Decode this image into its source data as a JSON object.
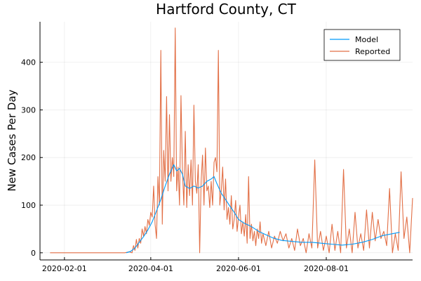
{
  "chart_data": {
    "type": "line",
    "title": "Hartford County, CT",
    "xlabel": "",
    "ylabel": "New Cases Per Day",
    "x_axis": {
      "type": "date",
      "range": [
        "2020-01-15",
        "2020-09-30"
      ],
      "ticks": [
        "2020-02-01",
        "2020-04-01",
        "2020-06-01",
        "2020-08-01"
      ]
    },
    "y_axis": {
      "range": [
        -15,
        485
      ],
      "ticks": [
        0,
        100,
        200,
        300,
        400
      ]
    },
    "grid": true,
    "legend": {
      "position": "top-right",
      "entries": [
        "Model",
        "Reported"
      ]
    },
    "colors": {
      "Model": "#009AFA",
      "Reported": "#E26F46"
    },
    "series": [
      {
        "name": "Model",
        "color": "#009AFA",
        "points": [
          [
            "2020-03-15",
            0
          ],
          [
            "2020-03-18",
            3
          ],
          [
            "2020-03-21",
            10
          ],
          [
            "2020-03-24",
            22
          ],
          [
            "2020-03-27",
            34
          ],
          [
            "2020-03-30",
            48
          ],
          [
            "2020-04-02",
            65
          ],
          [
            "2020-04-05",
            88
          ],
          [
            "2020-04-08",
            112
          ],
          [
            "2020-04-11",
            140
          ],
          [
            "2020-04-14",
            165
          ],
          [
            "2020-04-17",
            185
          ],
          [
            "2020-04-19",
            172
          ],
          [
            "2020-04-21",
            177
          ],
          [
            "2020-04-23",
            165
          ],
          [
            "2020-04-25",
            140
          ],
          [
            "2020-04-28",
            135
          ],
          [
            "2020-05-01",
            140
          ],
          [
            "2020-05-04",
            136
          ],
          [
            "2020-05-07",
            140
          ],
          [
            "2020-05-10",
            150
          ],
          [
            "2020-05-13",
            155
          ],
          [
            "2020-05-15",
            160
          ],
          [
            "2020-05-17",
            145
          ],
          [
            "2020-05-20",
            125
          ],
          [
            "2020-05-23",
            112
          ],
          [
            "2020-05-26",
            98
          ],
          [
            "2020-05-29",
            85
          ],
          [
            "2020-06-01",
            70
          ],
          [
            "2020-06-05",
            62
          ],
          [
            "2020-06-10",
            55
          ],
          [
            "2020-06-15",
            45
          ],
          [
            "2020-06-20",
            38
          ],
          [
            "2020-06-25",
            31
          ],
          [
            "2020-07-01",
            26
          ],
          [
            "2020-07-08",
            24
          ],
          [
            "2020-07-15",
            22
          ],
          [
            "2020-07-22",
            22
          ],
          [
            "2020-07-29",
            20
          ],
          [
            "2020-08-05",
            18
          ],
          [
            "2020-08-12",
            16
          ],
          [
            "2020-08-19",
            18
          ],
          [
            "2020-08-26",
            22
          ],
          [
            "2020-09-02",
            28
          ],
          [
            "2020-09-09",
            36
          ],
          [
            "2020-09-16",
            40
          ],
          [
            "2020-09-21",
            43
          ]
        ]
      },
      {
        "name": "Reported",
        "color": "#E26F46",
        "points": [
          [
            "2020-01-22",
            0
          ],
          [
            "2020-03-10",
            0
          ],
          [
            "2020-03-14",
            0
          ],
          [
            "2020-03-17",
            2
          ],
          [
            "2020-03-19",
            0
          ],
          [
            "2020-03-20",
            15
          ],
          [
            "2020-03-21",
            5
          ],
          [
            "2020-03-22",
            28
          ],
          [
            "2020-03-23",
            10
          ],
          [
            "2020-03-24",
            30
          ],
          [
            "2020-03-25",
            20
          ],
          [
            "2020-03-26",
            50
          ],
          [
            "2020-03-27",
            35
          ],
          [
            "2020-03-28",
            55
          ],
          [
            "2020-03-29",
            40
          ],
          [
            "2020-03-30",
            70
          ],
          [
            "2020-03-31",
            58
          ],
          [
            "2020-04-01",
            85
          ],
          [
            "2020-04-02",
            75
          ],
          [
            "2020-04-03",
            140
          ],
          [
            "2020-04-04",
            60
          ],
          [
            "2020-04-05",
            30
          ],
          [
            "2020-04-06",
            160
          ],
          [
            "2020-04-07",
            100
          ],
          [
            "2020-04-08",
            425
          ],
          [
            "2020-04-09",
            60
          ],
          [
            "2020-04-10",
            215
          ],
          [
            "2020-04-11",
            150
          ],
          [
            "2020-04-12",
            328
          ],
          [
            "2020-04-13",
            130
          ],
          [
            "2020-04-14",
            290
          ],
          [
            "2020-04-15",
            150
          ],
          [
            "2020-04-16",
            200
          ],
          [
            "2020-04-17",
            160
          ],
          [
            "2020-04-18",
            472
          ],
          [
            "2020-04-19",
            130
          ],
          [
            "2020-04-20",
            180
          ],
          [
            "2020-04-21",
            100
          ],
          [
            "2020-04-22",
            330
          ],
          [
            "2020-04-23",
            175
          ],
          [
            "2020-04-24",
            100
          ],
          [
            "2020-04-25",
            255
          ],
          [
            "2020-04-26",
            95
          ],
          [
            "2020-04-27",
            185
          ],
          [
            "2020-04-28",
            120
          ],
          [
            "2020-04-29",
            195
          ],
          [
            "2020-04-30",
            100
          ],
          [
            "2020-05-01",
            310
          ],
          [
            "2020-05-02",
            150
          ],
          [
            "2020-05-03",
            125
          ],
          [
            "2020-05-04",
            185
          ],
          [
            "2020-05-05",
            0
          ],
          [
            "2020-05-06",
            150
          ],
          [
            "2020-05-07",
            205
          ],
          [
            "2020-05-08",
            100
          ],
          [
            "2020-05-09",
            220
          ],
          [
            "2020-05-10",
            130
          ],
          [
            "2020-05-11",
            140
          ],
          [
            "2020-05-12",
            95
          ],
          [
            "2020-05-13",
            150
          ],
          [
            "2020-05-14",
            100
          ],
          [
            "2020-05-15",
            190
          ],
          [
            "2020-05-16",
            200
          ],
          [
            "2020-05-17",
            170
          ],
          [
            "2020-05-18",
            425
          ],
          [
            "2020-05-19",
            100
          ],
          [
            "2020-05-20",
            130
          ],
          [
            "2020-05-21",
            180
          ],
          [
            "2020-05-22",
            90
          ],
          [
            "2020-05-23",
            155
          ],
          [
            "2020-05-24",
            70
          ],
          [
            "2020-05-25",
            95
          ],
          [
            "2020-05-26",
            60
          ],
          [
            "2020-05-27",
            120
          ],
          [
            "2020-05-28",
            50
          ],
          [
            "2020-05-29",
            70
          ],
          [
            "2020-05-30",
            110
          ],
          [
            "2020-05-31",
            45
          ],
          [
            "2020-06-01",
            75
          ],
          [
            "2020-06-02",
            100
          ],
          [
            "2020-06-03",
            40
          ],
          [
            "2020-06-04",
            65
          ],
          [
            "2020-06-05",
            35
          ],
          [
            "2020-06-06",
            80
          ],
          [
            "2020-06-07",
            20
          ],
          [
            "2020-06-08",
            160
          ],
          [
            "2020-06-09",
            30
          ],
          [
            "2020-06-10",
            60
          ],
          [
            "2020-06-11",
            25
          ],
          [
            "2020-06-12",
            45
          ],
          [
            "2020-06-13",
            15
          ],
          [
            "2020-06-14",
            50
          ],
          [
            "2020-06-15",
            30
          ],
          [
            "2020-06-16",
            65
          ],
          [
            "2020-06-17",
            20
          ],
          [
            "2020-06-18",
            40
          ],
          [
            "2020-06-20",
            15
          ],
          [
            "2020-06-22",
            45
          ],
          [
            "2020-06-24",
            10
          ],
          [
            "2020-06-26",
            35
          ],
          [
            "2020-06-28",
            20
          ],
          [
            "2020-06-30",
            45
          ],
          [
            "2020-07-02",
            25
          ],
          [
            "2020-07-04",
            40
          ],
          [
            "2020-07-06",
            10
          ],
          [
            "2020-07-08",
            30
          ],
          [
            "2020-07-10",
            5
          ],
          [
            "2020-07-12",
            50
          ],
          [
            "2020-07-14",
            15
          ],
          [
            "2020-07-16",
            30
          ],
          [
            "2020-07-18",
            0
          ],
          [
            "2020-07-20",
            40
          ],
          [
            "2020-07-22",
            10
          ],
          [
            "2020-07-24",
            195
          ],
          [
            "2020-07-26",
            10
          ],
          [
            "2020-07-28",
            45
          ],
          [
            "2020-07-30",
            5
          ],
          [
            "2020-08-01",
            35
          ],
          [
            "2020-08-03",
            0
          ],
          [
            "2020-08-05",
            60
          ],
          [
            "2020-08-07",
            5
          ],
          [
            "2020-08-09",
            45
          ],
          [
            "2020-08-11",
            0
          ],
          [
            "2020-08-13",
            175
          ],
          [
            "2020-08-15",
            10
          ],
          [
            "2020-08-17",
            50
          ],
          [
            "2020-08-19",
            0
          ],
          [
            "2020-08-21",
            85
          ],
          [
            "2020-08-23",
            10
          ],
          [
            "2020-08-25",
            40
          ],
          [
            "2020-08-27",
            5
          ],
          [
            "2020-08-29",
            90
          ],
          [
            "2020-08-31",
            10
          ],
          [
            "2020-09-02",
            85
          ],
          [
            "2020-09-04",
            25
          ],
          [
            "2020-09-06",
            70
          ],
          [
            "2020-09-08",
            30
          ],
          [
            "2020-09-10",
            45
          ],
          [
            "2020-09-12",
            15
          ],
          [
            "2020-09-14",
            135
          ],
          [
            "2020-09-16",
            0
          ],
          [
            "2020-09-18",
            40
          ],
          [
            "2020-09-20",
            5
          ],
          [
            "2020-09-22",
            170
          ],
          [
            "2020-09-24",
            30
          ],
          [
            "2020-09-26",
            75
          ],
          [
            "2020-09-28",
            0
          ],
          [
            "2020-09-30",
            115
          ]
        ]
      }
    ]
  }
}
